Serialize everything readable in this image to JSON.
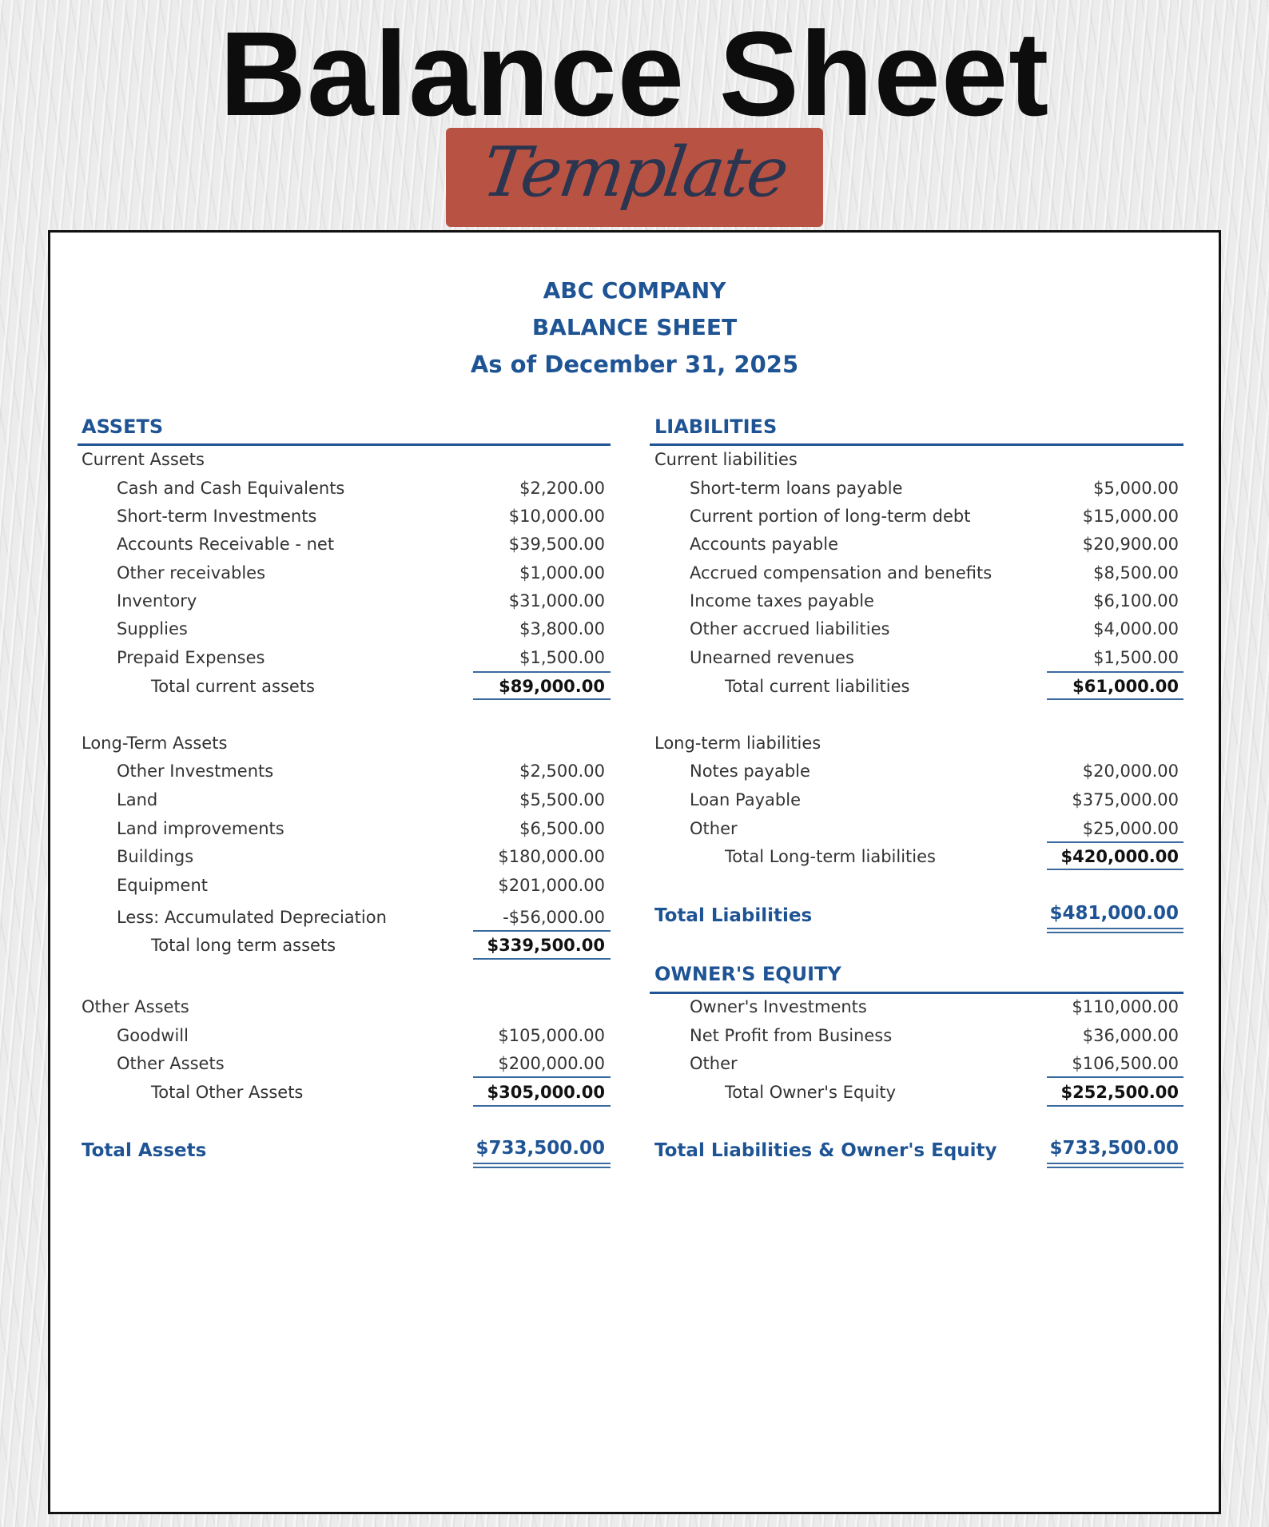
{
  "banner": {
    "title": "Balance Sheet",
    "subtitle": "Template",
    "subtitle_color": "#b85343"
  },
  "header": {
    "company": "ABC COMPANY",
    "doc_title": "BALANCE SHEET",
    "date": "As of December 31, 2025",
    "accent_color": "#1f5494"
  },
  "assets": {
    "title": "ASSETS",
    "current": {
      "label": "Current Assets",
      "items": [
        {
          "label": "Cash and Cash Equivalents",
          "value": "$2,200.00"
        },
        {
          "label": "Short-term Investments",
          "value": "$10,000.00"
        },
        {
          "label": "Accounts Receivable - net",
          "value": "$39,500.00"
        },
        {
          "label": "Other receivables",
          "value": "$1,000.00"
        },
        {
          "label": "Inventory",
          "value": "$31,000.00"
        },
        {
          "label": "Supplies",
          "value": "$3,800.00"
        },
        {
          "label": "Prepaid Expenses",
          "value": "$1,500.00"
        }
      ],
      "total_label": "Total current assets",
      "total": "$89,000.00"
    },
    "long_term": {
      "label": "Long-Term Assets",
      "items": [
        {
          "label": "Other Investments",
          "value": "$2,500.00"
        },
        {
          "label": "Land",
          "value": "$5,500.00"
        },
        {
          "label": "Land improvements",
          "value": "$6,500.00"
        },
        {
          "label": "Buildings",
          "value": "$180,000.00"
        },
        {
          "label": "Equipment",
          "value": "$201,000.00"
        },
        {
          "label": "Less: Accumulated Depreciation",
          "value": "-$56,000.00"
        }
      ],
      "total_label": "Total long term assets",
      "total": "$339,500.00"
    },
    "other": {
      "label": "Other Assets",
      "items": [
        {
          "label": "Goodwill",
          "value": "$105,000.00"
        },
        {
          "label": "Other Assets",
          "value": "$200,000.00"
        }
      ],
      "total_label": "Total Other Assets",
      "total": "$305,000.00"
    },
    "grand_total_label": "Total Assets",
    "grand_total": "$733,500.00"
  },
  "liabilities": {
    "title": "LIABILITIES",
    "current": {
      "label": "Current liabilities",
      "items": [
        {
          "label": "Short-term loans payable",
          "value": "$5,000.00"
        },
        {
          "label": "Current portion of long-term debt",
          "value": "$15,000.00"
        },
        {
          "label": "Accounts payable",
          "value": "$20,900.00"
        },
        {
          "label": "Accrued compensation and benefits",
          "value": "$8,500.00"
        },
        {
          "label": "Income taxes payable",
          "value": "$6,100.00"
        },
        {
          "label": "Other accrued liabilities",
          "value": "$4,000.00"
        },
        {
          "label": "Unearned revenues",
          "value": "$1,500.00"
        }
      ],
      "total_label": "Total current liabilities",
      "total": "$61,000.00"
    },
    "long_term": {
      "label": "Long-term liabilities",
      "items": [
        {
          "label": "Notes payable",
          "value": "$20,000.00"
        },
        {
          "label": "Loan Payable",
          "value": "$375,000.00"
        },
        {
          "label": "Other",
          "value": "$25,000.00"
        }
      ],
      "total_label": "Total Long-term liabilities",
      "total": "$420,000.00"
    },
    "grand_total_label": "Total Liabilities",
    "grand_total": "$481,000.00"
  },
  "equity": {
    "title": "OWNER'S EQUITY",
    "items": [
      {
        "label": "Owner's Investments",
        "value": "$110,000.00"
      },
      {
        "label": "Net Profit from Business",
        "value": "$36,000.00"
      },
      {
        "label": "Other",
        "value": "$106,500.00"
      }
    ],
    "total_label": "Total Owner's Equity",
    "total": "$252,500.00"
  },
  "total_le_label": "Total Liabilities & Owner's Equity",
  "total_le": "$733,500.00"
}
